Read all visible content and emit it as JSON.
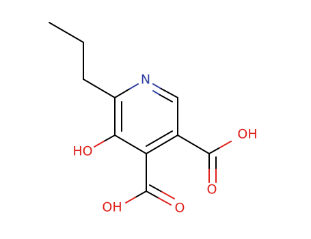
{
  "nodes": [
    {
      "label": "N"
    },
    {
      "label": "HO"
    },
    {
      "label": "OH"
    },
    {
      "label": "O"
    },
    {
      "label": "OH"
    },
    {
      "label": "O"
    }
  ]
}
